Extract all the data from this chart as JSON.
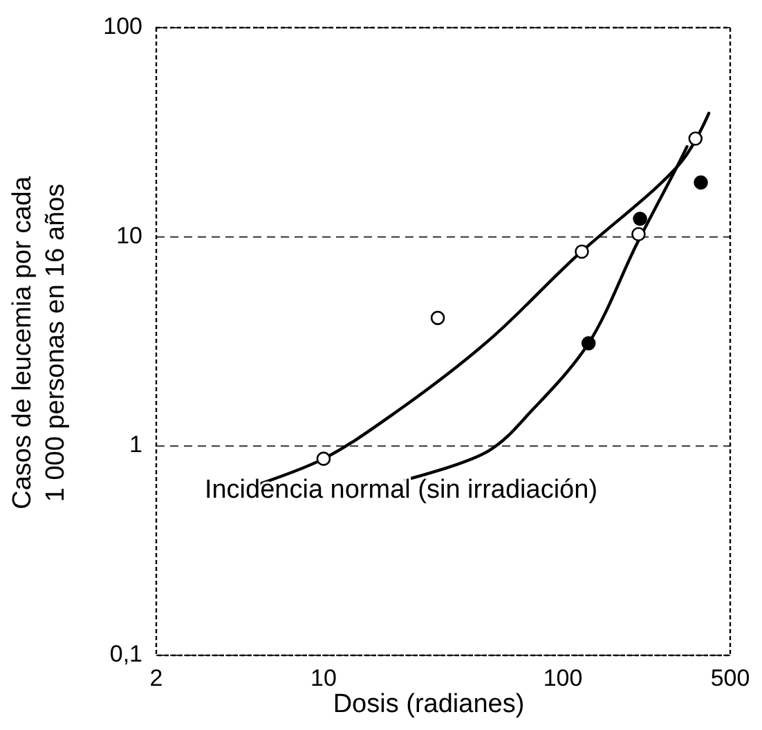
{
  "chart_data": {
    "type": "scatter",
    "xlabel": "Dosis (radianes)",
    "ylabel": "Casos de leucemia por cada\n1 000 personas en 16 años",
    "log": "xy",
    "xlim": [
      2,
      500
    ],
    "ylim": [
      0.1,
      100
    ],
    "xticks": [
      2,
      10,
      100,
      500
    ],
    "yticks": [
      {
        "value": 0.1,
        "label": "0,1"
      },
      1,
      10,
      100
    ],
    "grid": "y",
    "annotations": [
      "Incidencia normal (sin irradiación)"
    ],
    "series": [
      {
        "type": "line",
        "marker": "none",
        "color": "#000000",
        "x": [
          5.2,
          10,
          20,
          49,
          110,
          314,
          407
        ],
        "values": [
          0.65,
          0.87,
          1.45,
          3.2,
          7.8,
          23,
          39
        ]
      },
      {
        "type": "line",
        "marker": "none",
        "color": "#000000",
        "x": [
          22,
          49,
          75,
          128,
          204,
          302,
          330
        ],
        "values": [
          0.69,
          0.95,
          1.5,
          3.1,
          9.3,
          22,
          27
        ]
      },
      {
        "marker": "circle",
        "color": "#ffffff",
        "x": [
          10,
          30,
          120,
          207,
          358
        ],
        "values": [
          0.87,
          4.1,
          8.5,
          10.3,
          29.5
        ]
      },
      {
        "marker": "circle",
        "color": "#000000",
        "x": [
          128,
          210,
          377
        ],
        "values": [
          3.1,
          12.2,
          18.2
        ]
      }
    ]
  }
}
